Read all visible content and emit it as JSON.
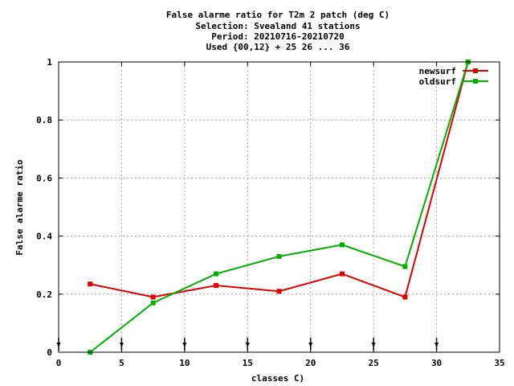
{
  "chart_data": {
    "type": "line",
    "title_lines": [
      "False alarme ratio  for T2m 2 patch (deg C)",
      "Selection: Svealand     41 stations",
      "Period: 20210716-20210720",
      "Used {00,12} + 25 26 ... 36"
    ],
    "xlabel": "classes C)",
    "ylabel": "False alarme ratio",
    "xlim": [
      0,
      35
    ],
    "ylim": [
      0,
      1
    ],
    "xticks": [
      0,
      5,
      10,
      15,
      20,
      25,
      30,
      35
    ],
    "yticks": [
      0,
      0.2,
      0.4,
      0.6,
      0.8,
      1
    ],
    "xtick_labels": [
      "0",
      "5",
      "10",
      "15",
      "20",
      "25",
      "30",
      "35"
    ],
    "ytick_labels": [
      "0",
      "0.2",
      "0.4",
      "0.6",
      "0.8",
      "1"
    ],
    "grid": true,
    "legend_position": "top-right",
    "bottom_markers_x": [
      0,
      5,
      10,
      15,
      20,
      25,
      30
    ],
    "series": [
      {
        "name": "newsurf",
        "color": "#e00000",
        "x": [
          2.5,
          7.5,
          12.5,
          17.5,
          22.5,
          27.5,
          32.5
        ],
        "y": [
          0.235,
          0.19,
          0.23,
          0.21,
          0.27,
          0.19,
          1.0
        ]
      },
      {
        "name": "oldsurf",
        "color": "#00b000",
        "x": [
          2.5,
          7.5,
          12.5,
          17.5,
          22.5,
          27.5,
          32.5
        ],
        "y": [
          0.0,
          0.17,
          0.27,
          0.33,
          0.37,
          0.295,
          1.0
        ]
      }
    ]
  }
}
